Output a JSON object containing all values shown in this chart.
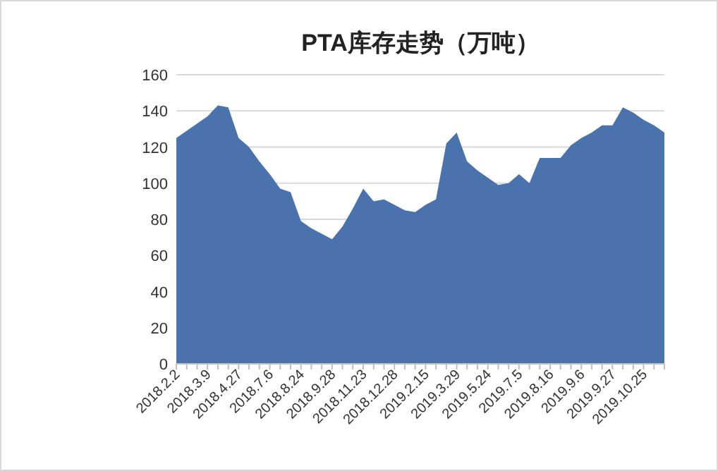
{
  "chart_data": {
    "type": "area",
    "title": "PTA库存走势（万吨）",
    "categories": [
      "2018.2.2",
      null,
      null,
      "2018.3.9",
      null,
      null,
      "2018.4.27",
      null,
      null,
      "2018.7.6",
      null,
      null,
      "2018.8.24",
      null,
      null,
      "2018.9.28",
      null,
      null,
      "2018.11.23",
      null,
      null,
      "2018.12.28",
      null,
      null,
      "2019.2.15",
      null,
      null,
      "2019.3.29",
      null,
      null,
      "2019.5.24",
      null,
      null,
      "2019.7.5",
      null,
      null,
      "2019.8.16",
      null,
      null,
      "2019.9.6",
      null,
      null,
      "2019.9.27",
      null,
      null,
      "2019.10.25",
      null,
      null
    ],
    "values": [
      125,
      129,
      133,
      137,
      143,
      142,
      125,
      120,
      112,
      105,
      97,
      95,
      79,
      75,
      72,
      69,
      76,
      86,
      97,
      90,
      91,
      88,
      85,
      84,
      88,
      91,
      122,
      128,
      112,
      107,
      103,
      99,
      100,
      105,
      100,
      114,
      114,
      114,
      121,
      125,
      128,
      132,
      132,
      142,
      139,
      135,
      132,
      128
    ],
    "color": "#4a73ad",
    "ylim": [
      0,
      160
    ],
    "yticks": [
      0,
      20,
      40,
      60,
      80,
      100,
      120,
      140,
      160
    ],
    "grid": "y"
  }
}
